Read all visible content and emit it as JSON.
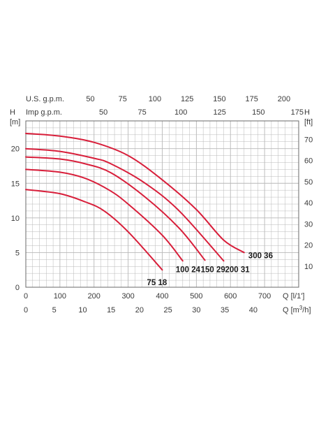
{
  "chart_data": {
    "type": "line",
    "colors": {
      "curve": "#d81e3a",
      "grid": "#b8b8b8",
      "frame": "#6a6a6a",
      "text": "#3a3a3a"
    },
    "grid": true,
    "primary_axes": {
      "x_label": "Q [l/1']",
      "x_range": [
        0,
        800
      ],
      "x_ticks": [
        0,
        100,
        200,
        300,
        400,
        500,
        600,
        700
      ],
      "y_label": "H [m]",
      "y_range": [
        0,
        24
      ],
      "y_ticks": [
        0,
        5,
        10,
        15,
        20
      ]
    },
    "secondary_axes": {
      "x_m3h_label": "Q [m³/h]",
      "x_m3h_ticks": [
        0,
        5,
        10,
        15,
        20,
        25,
        30,
        35,
        40
      ],
      "x_usgpm_label": "U.S. g.p.m.",
      "x_usgpm_ticks": [
        50,
        75,
        100,
        125,
        150,
        175,
        200
      ],
      "x_impgpm_label": "Imp g.p.m.",
      "x_impgpm_ticks": [
        50,
        75,
        100,
        125,
        150,
        175
      ],
      "y_ft_label": "H [ft]",
      "y_ft_ticks": [
        10,
        20,
        30,
        40,
        50,
        60,
        70
      ]
    },
    "series": [
      {
        "name": "75 18",
        "points": [
          [
            0,
            14.1
          ],
          [
            100,
            13.5
          ],
          [
            175,
            12.3
          ],
          [
            230,
            11
          ],
          [
            300,
            8
          ],
          [
            400,
            2.5
          ]
        ]
      },
      {
        "name": "100 24",
        "points": [
          [
            0,
            17
          ],
          [
            100,
            16.6
          ],
          [
            175,
            15.7
          ],
          [
            245,
            14
          ],
          [
            300,
            12
          ],
          [
            400,
            7.5
          ],
          [
            460,
            3.8
          ]
        ]
      },
      {
        "name": "150 29",
        "points": [
          [
            0,
            18.8
          ],
          [
            100,
            18.5
          ],
          [
            175,
            17.8
          ],
          [
            250,
            16.5
          ],
          [
            350,
            13
          ],
          [
            450,
            8.5
          ],
          [
            525,
            3.9
          ]
        ]
      },
      {
        "name": "200 31",
        "points": [
          [
            0,
            20
          ],
          [
            100,
            19.6
          ],
          [
            200,
            18.6
          ],
          [
            250,
            17.8
          ],
          [
            350,
            15
          ],
          [
            450,
            11
          ],
          [
            580,
            3.8
          ]
        ]
      },
      {
        "name": "300 36",
        "points": [
          [
            0,
            22.2
          ],
          [
            100,
            21.8
          ],
          [
            200,
            20.9
          ],
          [
            300,
            19
          ],
          [
            400,
            15.5
          ],
          [
            500,
            11.2
          ],
          [
            580,
            6.8
          ],
          [
            640,
            5
          ]
        ]
      }
    ],
    "labels": {
      "y_left_title": "H",
      "y_left_unit": "[m]",
      "y_right_title": "H",
      "y_right_unit": "[ft]",
      "top_row_1": "U.S. g.p.m.",
      "top_row_2": "Imp g.p.m.",
      "bottom_row_1": "Q [l/1']",
      "bottom_row_2_prefix": "Q [m",
      "bottom_row_2_sup": "3",
      "bottom_row_2_suffix": "/h]"
    }
  }
}
